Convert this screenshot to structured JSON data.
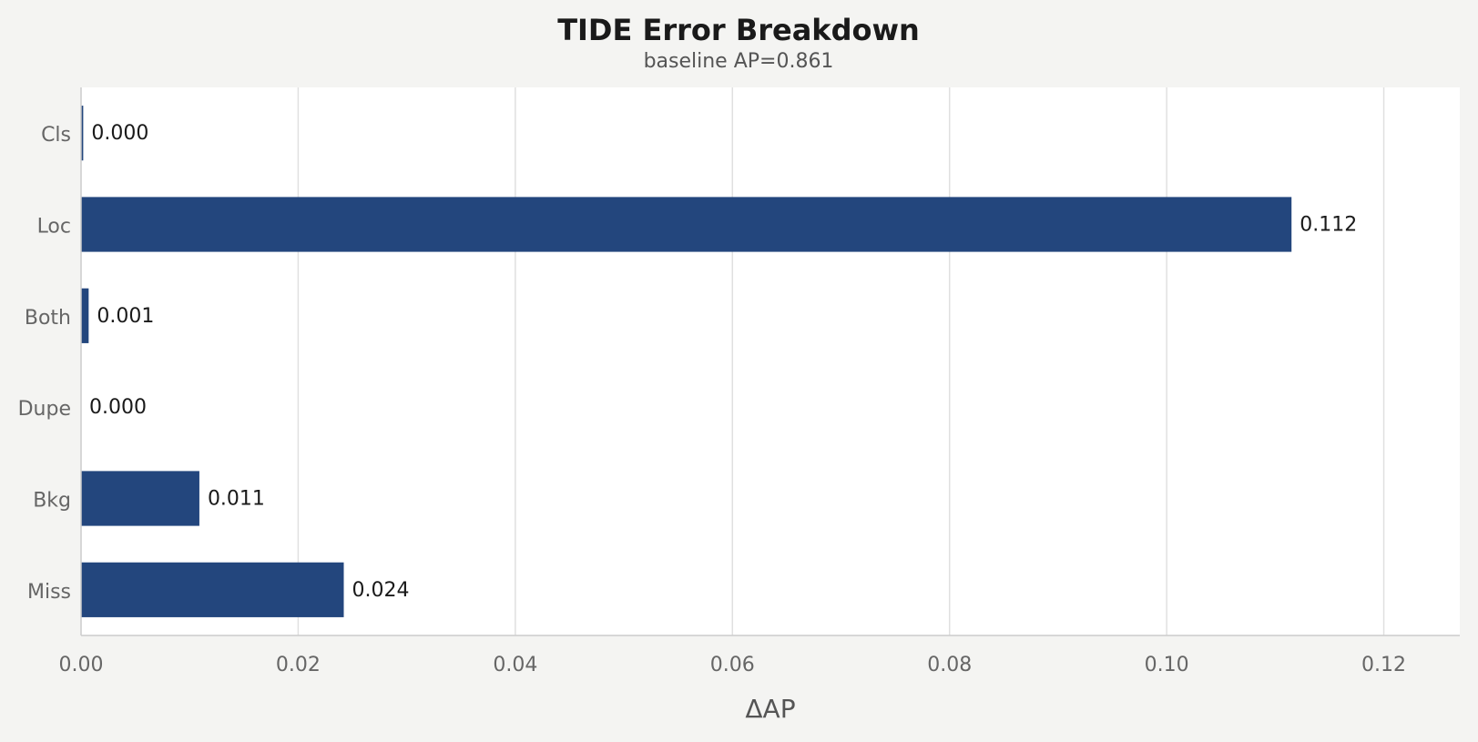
{
  "chart_data": {
    "type": "bar",
    "orientation": "horizontal",
    "title": "TIDE Error Breakdown",
    "subtitle": "baseline AP=0.861",
    "xlabel": "ΔAP",
    "ylabel": "",
    "categories": [
      "Cls",
      "Loc",
      "Both",
      "Dupe",
      "Bkg",
      "Miss"
    ],
    "values": [
      0.0002,
      0.1115,
      0.0007,
      0.0,
      0.0109,
      0.0242
    ],
    "value_labels": [
      "0.000",
      "0.112",
      "0.001",
      "0.000",
      "0.011",
      "0.024"
    ],
    "xlim": [
      0,
      0.127
    ],
    "xticks": [
      0,
      0.02,
      0.04,
      0.06,
      0.08,
      0.1,
      0.12
    ],
    "xtick_labels": [
      "0.00",
      "0.02",
      "0.04",
      "0.06",
      "0.08",
      "0.10",
      "0.12"
    ],
    "grid": "vertical",
    "bar_color": "#23467d",
    "plot_background": "#ffffff",
    "page_background": "#f4f4f2"
  }
}
